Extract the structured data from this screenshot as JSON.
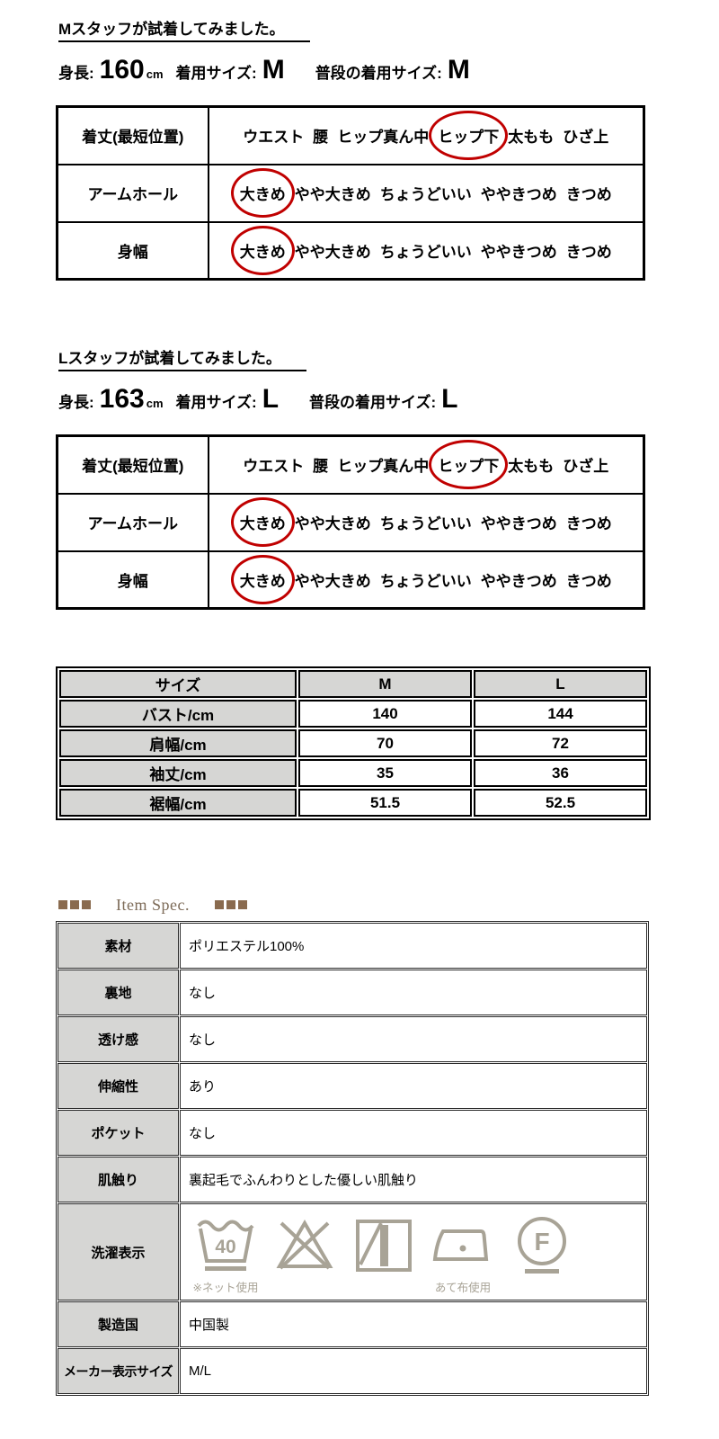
{
  "fit_sections": [
    {
      "heading": "Mスタッフが試着してみました。",
      "height_label": "身長:",
      "height_value": "160",
      "height_unit": "cm",
      "wear_label": "着用サイズ:",
      "wear_value": "M",
      "usual_label": "普段の着用サイズ:",
      "usual_value": "M",
      "rows": [
        {
          "label": "着丈(最短位置)",
          "options": [
            "ウエスト",
            "腰",
            "ヒップ真ん中",
            "ヒップ下",
            "太もも",
            "ひざ上"
          ],
          "selected": "ヒップ下"
        },
        {
          "label": "アームホール",
          "options": [
            "大きめ",
            "やや大きめ",
            "ちょうどいい",
            "ややきつめ",
            "きつめ"
          ],
          "selected": "大きめ"
        },
        {
          "label": "身幅",
          "options": [
            "大きめ",
            "やや大きめ",
            "ちょうどいい",
            "ややきつめ",
            "きつめ"
          ],
          "selected": "大きめ"
        }
      ]
    },
    {
      "heading": "Lスタッフが試着してみました。",
      "height_label": "身長:",
      "height_value": "163",
      "height_unit": "cm",
      "wear_label": "着用サイズ:",
      "wear_value": "L",
      "usual_label": "普段の着用サイズ:",
      "usual_value": "L",
      "rows": [
        {
          "label": "着丈(最短位置)",
          "options": [
            "ウエスト",
            "腰",
            "ヒップ真ん中",
            "ヒップ下",
            "太もも",
            "ひざ上"
          ],
          "selected": "ヒップ下"
        },
        {
          "label": "アームホール",
          "options": [
            "大きめ",
            "やや大きめ",
            "ちょうどいい",
            "ややきつめ",
            "きつめ"
          ],
          "selected": "大きめ"
        },
        {
          "label": "身幅",
          "options": [
            "大きめ",
            "やや大きめ",
            "ちょうどいい",
            "ややきつめ",
            "きつめ"
          ],
          "selected": "大きめ"
        }
      ]
    }
  ],
  "size_table": {
    "header": [
      "サイズ",
      "M",
      "L"
    ],
    "rows": [
      {
        "label": "バスト/cm",
        "values": [
          "140",
          "144"
        ]
      },
      {
        "label": "肩幅/cm",
        "values": [
          "70",
          "72"
        ]
      },
      {
        "label": "袖丈/cm",
        "values": [
          "35",
          "36"
        ]
      },
      {
        "label": "裾幅/cm",
        "values": [
          "51.5",
          "52.5"
        ]
      }
    ]
  },
  "item_spec": {
    "heading": "Item Spec.",
    "rows": [
      {
        "label": "素材",
        "value": "ポリエステル100%"
      },
      {
        "label": "裏地",
        "value": "なし"
      },
      {
        "label": "透け感",
        "value": "なし"
      },
      {
        "label": "伸縮性",
        "value": "あり"
      },
      {
        "label": "ポケット",
        "value": "なし"
      },
      {
        "label": "肌触り",
        "value": "裏起毛でふんわりとした優しい肌触り"
      },
      {
        "label": "洗濯表示",
        "value": ""
      },
      {
        "label": "製造国",
        "value": "中国製"
      },
      {
        "label": "メーカー表示サイズ",
        "value": "M/L"
      }
    ],
    "care_icons": [
      {
        "name": "wash-40-icon",
        "label": "40",
        "caption": "※ネット使用"
      },
      {
        "name": "do-not-bleach-icon",
        "label": "",
        "caption": ""
      },
      {
        "name": "line-dry-in-shade-icon",
        "label": "",
        "caption": ""
      },
      {
        "name": "iron-with-pressing-cloth-icon",
        "label": "",
        "caption": "あて布使用"
      },
      {
        "name": "gentle-dry-clean-f-icon",
        "label": "F",
        "caption": ""
      }
    ]
  },
  "colors": {
    "accent_red": "#c00000",
    "cell_gray": "#d6d6d4",
    "icon_tan": "#a8a396",
    "brown_square": "#8a6b4f",
    "brown_text": "#7d6b58"
  }
}
